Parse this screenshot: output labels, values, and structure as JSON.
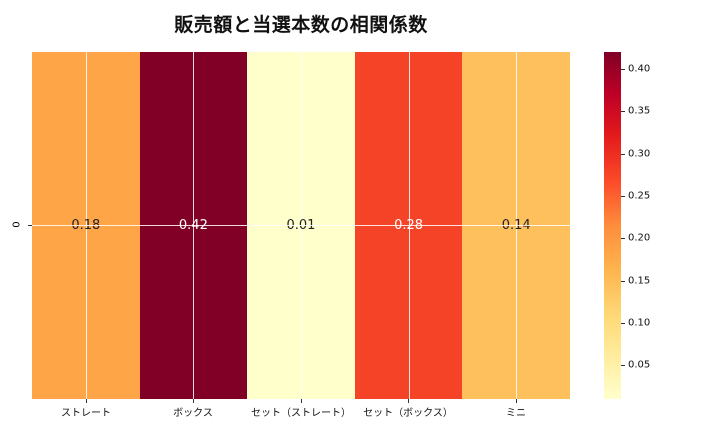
{
  "title": "販売額と当選本数の相関係数",
  "chart_data": {
    "type": "heatmap",
    "title": "販売額と当選本数の相関係数",
    "xlabel": "",
    "ylabel": "",
    "categories": [
      "ストレート",
      "ボックス",
      "セット（ストレート）",
      "セット（ボックス）",
      "ミニ"
    ],
    "rows": [
      "0"
    ],
    "values": [
      [
        0.18,
        0.42,
        0.01,
        0.28,
        0.14
      ]
    ],
    "value_labels": [
      "0.18",
      "0.42",
      "0.01",
      "0.28",
      "0.14"
    ],
    "colormap": "YlOrRd",
    "colorbar": {
      "range": [
        0.01,
        0.42
      ],
      "ticks": [
        0.05,
        0.1,
        0.15,
        0.2,
        0.25,
        0.3,
        0.35,
        0.4
      ],
      "tick_labels": [
        "0.05",
        "0.10",
        "0.15",
        "0.20",
        "0.25",
        "0.30",
        "0.35",
        "0.40"
      ]
    },
    "grid": true
  },
  "cells": [
    {
      "label": "0.18",
      "color": "#fea647",
      "text_color": "#222222"
    },
    {
      "label": "0.42",
      "color": "#800026",
      "text_color": "#ffffff"
    },
    {
      "label": "0.01",
      "color": "#ffffcc",
      "text_color": "#222222"
    },
    {
      "label": "0.28",
      "color": "#f44327",
      "text_color": "#ffffff"
    },
    {
      "label": "0.14",
      "color": "#fec05c",
      "text_color": "#222222"
    }
  ],
  "xticklabels": [
    "ストレート",
    "ボックス",
    "セット（ストレート）",
    "セット（ボックス）",
    "ミニ"
  ],
  "yticklabels": [
    "0"
  ],
  "colorbar_ticks": [
    {
      "label": "0.40",
      "value": 0.4
    },
    {
      "label": "0.35",
      "value": 0.35
    },
    {
      "label": "0.30",
      "value": 0.3
    },
    {
      "label": "0.25",
      "value": 0.25
    },
    {
      "label": "0.20",
      "value": 0.2
    },
    {
      "label": "0.15",
      "value": 0.15
    },
    {
      "label": "0.10",
      "value": 0.1
    },
    {
      "label": "0.05",
      "value": 0.05
    }
  ]
}
